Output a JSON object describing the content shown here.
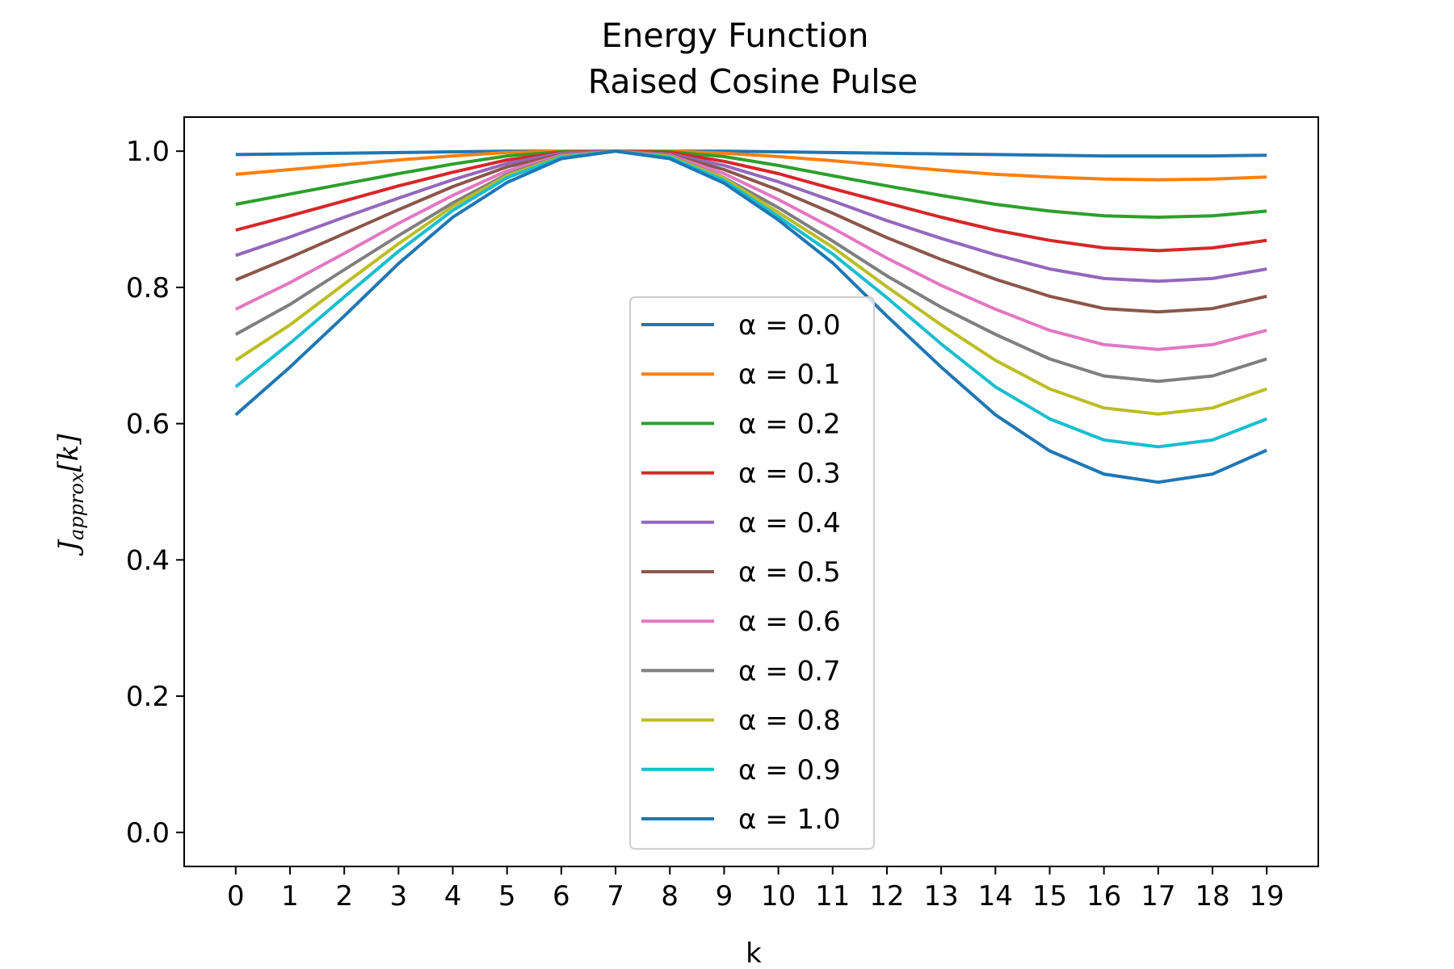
{
  "chart_data": {
    "type": "line",
    "title": "Energy Function",
    "subtitle": "Raised Cosine Pulse",
    "xlabel": "k",
    "ylabel": {
      "base": "J",
      "subscript": "approx",
      "bracket": "[k]"
    },
    "xlim": [
      -0.95,
      19.95
    ],
    "ylim": [
      -0.05,
      1.05
    ],
    "x": [
      0,
      1,
      2,
      3,
      4,
      5,
      6,
      7,
      8,
      9,
      10,
      11,
      12,
      13,
      14,
      15,
      16,
      17,
      18,
      19
    ],
    "x_tick_labels": [
      "0",
      "1",
      "2",
      "3",
      "4",
      "5",
      "6",
      "7",
      "8",
      "9",
      "10",
      "11",
      "12",
      "13",
      "14",
      "15",
      "16",
      "17",
      "18",
      "19"
    ],
    "y_ticks": [
      0.0,
      0.2,
      0.4,
      0.6,
      0.8,
      1.0
    ],
    "y_tick_labels": [
      "0.0",
      "0.2",
      "0.4",
      "0.6",
      "0.8",
      "1.0"
    ],
    "legend_position": "center-bottom",
    "grid": false,
    "series": [
      {
        "name": "α = 0.0",
        "color": "#1f77b4",
        "values": [
          0.995,
          0.996,
          0.997,
          0.998,
          0.999,
          1.0,
          1.0,
          1.0,
          1.0,
          1.0,
          0.999,
          0.998,
          0.997,
          0.996,
          0.995,
          0.994,
          0.993,
          0.993,
          0.993,
          0.994
        ]
      },
      {
        "name": "α = 0.1",
        "color": "#ff7f0e",
        "values": [
          0.966,
          0.973,
          0.98,
          0.987,
          0.993,
          0.998,
          1.0,
          1.0,
          1.0,
          0.997,
          0.992,
          0.986,
          0.979,
          0.972,
          0.966,
          0.962,
          0.959,
          0.958,
          0.959,
          0.962
        ]
      },
      {
        "name": "α = 0.2",
        "color": "#2ca02c",
        "values": [
          0.922,
          0.937,
          0.952,
          0.967,
          0.981,
          0.993,
          0.999,
          1.0,
          0.999,
          0.992,
          0.979,
          0.964,
          0.949,
          0.935,
          0.922,
          0.912,
          0.905,
          0.903,
          0.905,
          0.912
        ]
      },
      {
        "name": "α = 0.3",
        "color": "#d62728",
        "values": [
          0.884,
          0.905,
          0.927,
          0.949,
          0.969,
          0.987,
          0.998,
          1.0,
          0.998,
          0.985,
          0.967,
          0.945,
          0.924,
          0.903,
          0.884,
          0.869,
          0.858,
          0.854,
          0.858,
          0.869
        ]
      },
      {
        "name": "α = 0.4",
        "color": "#9467bd",
        "values": [
          0.847,
          0.874,
          0.903,
          0.931,
          0.958,
          0.982,
          0.997,
          1.0,
          0.996,
          0.979,
          0.955,
          0.927,
          0.898,
          0.872,
          0.848,
          0.827,
          0.813,
          0.809,
          0.813,
          0.827
        ]
      },
      {
        "name": "α = 0.5",
        "color": "#8c564b",
        "values": [
          0.811,
          0.844,
          0.879,
          0.914,
          0.948,
          0.977,
          0.995,
          1.0,
          0.995,
          0.973,
          0.943,
          0.909,
          0.873,
          0.841,
          0.812,
          0.787,
          0.769,
          0.764,
          0.769,
          0.787
        ]
      },
      {
        "name": "α = 0.6",
        "color": "#e377c2",
        "values": [
          0.768,
          0.807,
          0.85,
          0.894,
          0.935,
          0.971,
          0.994,
          1.0,
          0.994,
          0.967,
          0.929,
          0.887,
          0.843,
          0.803,
          0.768,
          0.737,
          0.716,
          0.709,
          0.716,
          0.737
        ]
      },
      {
        "name": "α = 0.7",
        "color": "#7f7f7f",
        "values": [
          0.731,
          0.775,
          0.826,
          0.876,
          0.924,
          0.966,
          0.993,
          1.0,
          0.993,
          0.961,
          0.917,
          0.868,
          0.817,
          0.771,
          0.731,
          0.695,
          0.67,
          0.662,
          0.67,
          0.695
        ]
      },
      {
        "name": "α = 0.8",
        "color": "#bcbd22",
        "values": [
          0.693,
          0.745,
          0.805,
          0.864,
          0.919,
          0.964,
          0.992,
          1.0,
          0.992,
          0.96,
          0.91,
          0.859,
          0.801,
          0.745,
          0.693,
          0.651,
          0.623,
          0.614,
          0.623,
          0.651
        ]
      },
      {
        "name": "α = 0.9",
        "color": "#17becf",
        "values": [
          0.654,
          0.718,
          0.786,
          0.853,
          0.913,
          0.961,
          0.991,
          1.0,
          0.991,
          0.957,
          0.904,
          0.849,
          0.785,
          0.717,
          0.654,
          0.607,
          0.576,
          0.566,
          0.576,
          0.607
        ]
      },
      {
        "name": "α = 1.0",
        "color": "#1f77b4",
        "values": [
          0.613,
          0.683,
          0.758,
          0.835,
          0.903,
          0.954,
          0.989,
          1.0,
          0.989,
          0.953,
          0.899,
          0.836,
          0.758,
          0.683,
          0.613,
          0.56,
          0.526,
          0.514,
          0.526,
          0.561
        ]
      }
    ]
  }
}
